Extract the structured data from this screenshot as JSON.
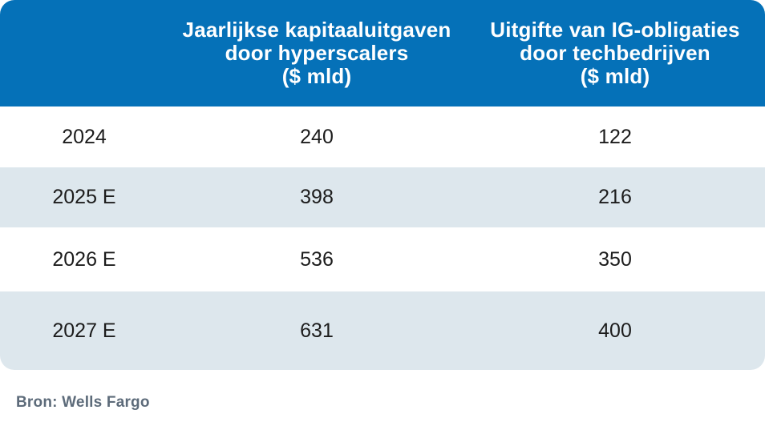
{
  "table": {
    "columns": [
      {
        "label": ""
      },
      {
        "label": "Jaarlijkse kapitaaluitgaven\ndoor hyperscalers\n($ mld)"
      },
      {
        "label": "Uitgifte van IG-obligaties\ndoor techbedrijven\n($ mld)"
      }
    ],
    "rows": [
      {
        "year": "2024",
        "capex": "240",
        "bonds": "122"
      },
      {
        "year": "2025 E",
        "capex": "398",
        "bonds": "216"
      },
      {
        "year": "2026 E",
        "capex": "536",
        "bonds": "350"
      },
      {
        "year": "2027 E",
        "capex": "631",
        "bonds": "400"
      }
    ]
  },
  "footer": {
    "source": "Bron: Wells Fargo"
  },
  "colors": {
    "header_bg": "#0571B8",
    "header_text": "#FFFFFF",
    "alt_row_bg": "#DDE7ED",
    "body_text": "#1C1C1C",
    "source_text": "#5D6B7A"
  },
  "chart_data": {
    "type": "table",
    "categories": [
      "2024",
      "2025 E",
      "2026 E",
      "2027 E"
    ],
    "series": [
      {
        "name": "Jaarlijkse kapitaaluitgaven door hyperscalers ($ mld)",
        "values": [
          240,
          398,
          536,
          631
        ]
      },
      {
        "name": "Uitgifte van IG-obligaties door techbedrijven ($ mld)",
        "values": [
          122,
          216,
          350,
          400
        ]
      }
    ],
    "title": "",
    "xlabel": "",
    "ylabel": "",
    "source": "Bron: Wells Fargo",
    "layout": {
      "alternating_rows": true,
      "header_position": "top",
      "grid": false,
      "legend": "none"
    }
  }
}
